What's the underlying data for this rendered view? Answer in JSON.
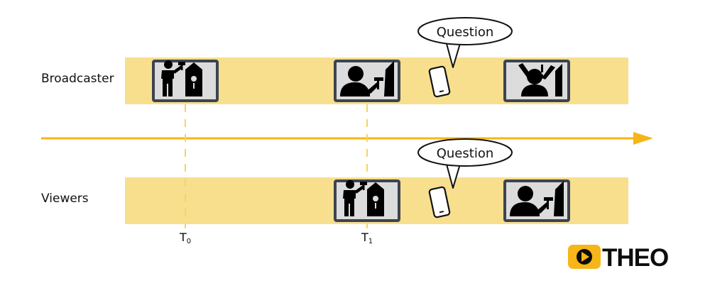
{
  "rows": {
    "broadcaster": {
      "label": "Broadcaster"
    },
    "viewers": {
      "label": "Viewers"
    }
  },
  "bubbles": {
    "broadcaster_question": "Question",
    "viewers_question": "Question"
  },
  "time_markers": {
    "t0": {
      "main": "T",
      "sub": "0"
    },
    "t1": {
      "main": "T",
      "sub": "1"
    }
  },
  "frames": {
    "broadcaster": [
      "builder-birdhouse-icon",
      "person-hammer-icon",
      "phone-icon",
      "person-raised-arms-exclaim-icon"
    ],
    "viewers": [
      "builder-birdhouse-icon",
      "phone-icon",
      "person-hammer-icon"
    ]
  },
  "logo": {
    "text": "THEO"
  },
  "colors": {
    "track": "#f8df8e",
    "arrow": "#f6b519",
    "dash": "#f6d45e",
    "frame_border": "#3c4450",
    "frame_fill": "#dcdcdc",
    "logo_accent": "#f6b519"
  }
}
